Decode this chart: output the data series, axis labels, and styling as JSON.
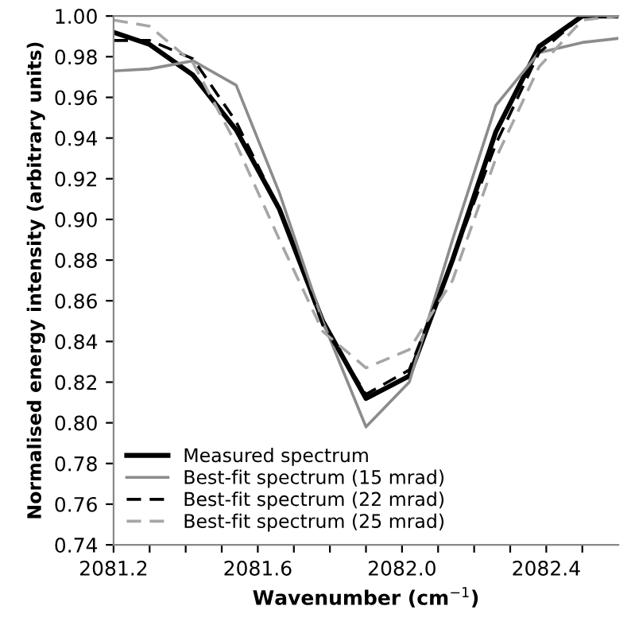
{
  "chart_data": {
    "type": "line",
    "xlabel": "Wavenumber (cm$^{−1}$)",
    "ylabel": "Normalised energy intensity (arbitrary units)",
    "x": [
      2081.2,
      2081.3,
      2081.42,
      2081.54,
      2081.66,
      2081.78,
      2081.9,
      2082.02,
      2082.14,
      2082.26,
      2082.38,
      2082.5,
      2082.6
    ],
    "series": [
      {
        "name": "Measured spectrum",
        "color": "#000000",
        "line_style": "solid",
        "values": [
          0.992,
          0.986,
          0.971,
          0.944,
          0.905,
          0.85,
          0.812,
          0.823,
          0.88,
          0.943,
          0.985,
          1.0,
          1.0
        ]
      },
      {
        "name": "Best-fit spectrum (15 mrad)",
        "color": "#8c8c8c",
        "line_style": "solid",
        "values": [
          0.973,
          0.974,
          0.978,
          0.966,
          0.913,
          0.85,
          0.798,
          0.82,
          0.89,
          0.956,
          0.982,
          0.987,
          0.989
        ]
      },
      {
        "name": "Best-fit spectrum (22 mrad)",
        "color": "#000000",
        "line_style": "dashed",
        "values": [
          0.988,
          0.988,
          0.979,
          0.948,
          0.905,
          0.848,
          0.814,
          0.826,
          0.88,
          0.937,
          0.982,
          1.0,
          1.0
        ]
      },
      {
        "name": "Best-fit spectrum (25 mrad)",
        "color": "#a6a6a6",
        "line_style": "dashed",
        "values": [
          0.998,
          0.995,
          0.977,
          0.937,
          0.89,
          0.845,
          0.827,
          0.836,
          0.87,
          0.93,
          0.975,
          0.998,
          1.0
        ]
      }
    ],
    "xlim": [
      2081.2,
      2082.6
    ],
    "ylim": [
      0.74,
      1.0
    ],
    "xticks": [
      {
        "value": 2081.2,
        "label": "2081.2"
      },
      {
        "value": 2081.3,
        "label": null
      },
      {
        "value": 2081.4,
        "label": null
      },
      {
        "value": 2081.5,
        "label": null
      },
      {
        "value": 2081.6,
        "label": "2081.6"
      },
      {
        "value": 2081.7,
        "label": null
      },
      {
        "value": 2081.8,
        "label": null
      },
      {
        "value": 2081.9,
        "label": null
      },
      {
        "value": 2082.0,
        "label": "2082.0"
      },
      {
        "value": 2082.1,
        "label": null
      },
      {
        "value": 2082.2,
        "label": null
      },
      {
        "value": 2082.3,
        "label": null
      },
      {
        "value": 2082.4,
        "label": "2082.4"
      },
      {
        "value": 2082.5,
        "label": null
      }
    ],
    "yticks": [
      {
        "value": 0.74,
        "label": "0.74"
      },
      {
        "value": 0.76,
        "label": "0.76"
      },
      {
        "value": 0.78,
        "label": "0.78"
      },
      {
        "value": 0.8,
        "label": "0.80"
      },
      {
        "value": 0.82,
        "label": "0.82"
      },
      {
        "value": 0.84,
        "label": "0.84"
      },
      {
        "value": 0.86,
        "label": "0.86"
      },
      {
        "value": 0.88,
        "label": "0.88"
      },
      {
        "value": 0.9,
        "label": "0.90"
      },
      {
        "value": 0.92,
        "label": "0.92"
      },
      {
        "value": 0.94,
        "label": "0.94"
      },
      {
        "value": 0.96,
        "label": "0.96"
      },
      {
        "value": 0.98,
        "label": "0.98"
      },
      {
        "value": 1.0,
        "label": "1.00"
      }
    ],
    "grid": false,
    "legend": "bottom left"
  }
}
